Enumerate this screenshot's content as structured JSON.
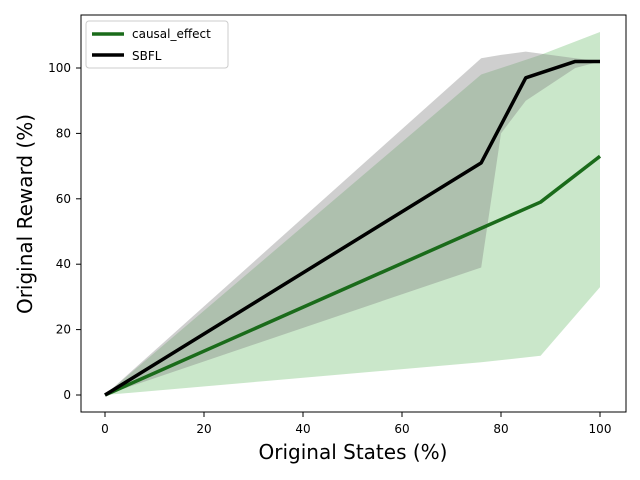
{
  "chart_data": {
    "type": "line",
    "xlabel": "Original States (%)",
    "ylabel": "Original Reward (%)",
    "xlim": [
      -5,
      105
    ],
    "ylim": [
      -5,
      115
    ],
    "xticks": [
      0,
      20,
      40,
      60,
      80,
      100
    ],
    "yticks": [
      0,
      20,
      40,
      60,
      80,
      100
    ],
    "grid": false,
    "legend_position": "top-left",
    "series": [
      {
        "name": "causal_effect",
        "color": "#1a6b1a",
        "band_color": "#2ca02c",
        "x": [
          0,
          76,
          88,
          100
        ],
        "y": [
          0,
          51,
          59,
          73
        ],
        "band_lower": [
          0,
          10,
          12,
          33
        ],
        "band_upper": [
          0,
          98,
          104,
          111
        ],
        "band_x": [
          0,
          76,
          88,
          100
        ]
      },
      {
        "name": "SBFL",
        "color": "#000000",
        "band_color": "#808080",
        "x": [
          0,
          76,
          85,
          95,
          100
        ],
        "y": [
          0,
          71,
          97,
          102,
          102
        ],
        "band_x": [
          0,
          76,
          80,
          85,
          95,
          100
        ],
        "band_lower": [
          0,
          39,
          80,
          90,
          100,
          102
        ],
        "band_upper": [
          0,
          103,
          104,
          105,
          103,
          102
        ]
      }
    ]
  }
}
